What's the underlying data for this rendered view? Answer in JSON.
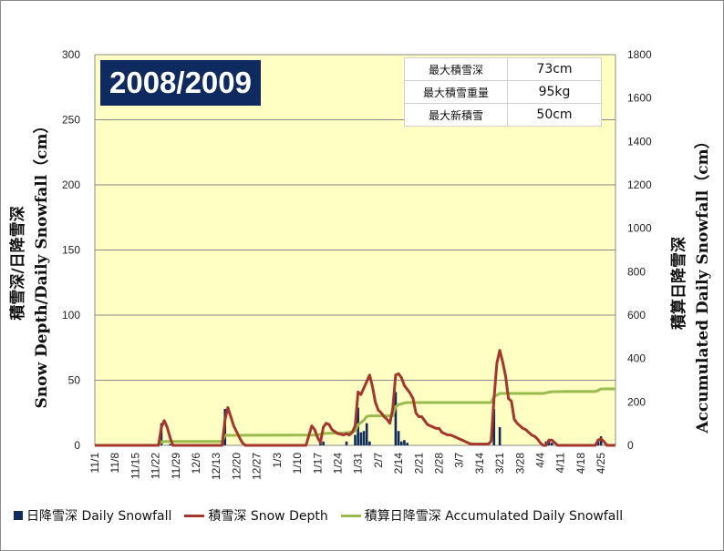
{
  "chart_data": {
    "type": "bar+line",
    "title": "2008/2009",
    "ylabel_left": "積雪深/日降雪深/Snow Depth/Daily Snowfall (cm)",
    "ylabel_left_line1": "積雪深/日降雪深",
    "ylabel_left_line2": "Snow Depth/Daily Snowfall（cm）",
    "ylabel_right_line1": "積算日降雪深",
    "ylabel_right_line2": "Accumulated Daily Snowfall（cm）",
    "ylim_left": [
      0,
      300
    ],
    "yticks_left": [
      "0",
      "50",
      "100",
      "150",
      "200",
      "250",
      "300"
    ],
    "ylim_right": [
      0,
      1800
    ],
    "yticks_right": [
      "0",
      "200",
      "400",
      "600",
      "800",
      "1000",
      "1200",
      "1400",
      "1600",
      "1800"
    ],
    "xlim_days": [
      0,
      180
    ],
    "xtick_labels": [
      "11/1",
      "11/8",
      "11/15",
      "11/22",
      "11/29",
      "12/6",
      "12/13",
      "12/20",
      "12/27",
      "1/3",
      "1/10",
      "1/17",
      "1/24",
      "1/31",
      "2/7",
      "2/14",
      "2/21",
      "2/28",
      "3/7",
      "3/14",
      "3/21",
      "3/28",
      "4/4",
      "4/11",
      "4/18",
      "4/25"
    ],
    "grid": "horizontal",
    "legend_placement": "bottom",
    "colors": {
      "plot_bg": "#ffffc4",
      "bar": "#0e2a5e",
      "snow_depth": "#a5362e",
      "accumulated": "#99bb4d"
    },
    "series": [
      {
        "name": "日降雪深 Daily Snowfall",
        "type": "bar",
        "axis": "left",
        "points": [
          [
            23,
            17
          ],
          [
            26,
            1
          ],
          [
            45,
            28
          ],
          [
            68,
            1
          ],
          [
            78,
            5
          ],
          [
            79,
            3
          ],
          [
            87,
            3
          ],
          [
            90,
            8
          ],
          [
            91,
            29
          ],
          [
            92,
            10
          ],
          [
            93,
            11
          ],
          [
            94,
            17
          ],
          [
            95,
            3
          ],
          [
            104,
            41
          ],
          [
            105,
            11
          ],
          [
            106,
            3
          ],
          [
            107,
            4
          ],
          [
            108,
            2
          ],
          [
            138,
            28
          ],
          [
            140,
            14
          ],
          [
            156,
            3
          ],
          [
            157,
            3
          ],
          [
            158,
            2
          ],
          [
            163,
            1
          ],
          [
            174,
            5
          ],
          [
            175,
            7
          ]
        ]
      },
      {
        "name": "積雪深 Snow Depth",
        "type": "line",
        "axis": "left",
        "points": [
          [
            0,
            0
          ],
          [
            22,
            0
          ],
          [
            23,
            14
          ],
          [
            24,
            19
          ],
          [
            25,
            14
          ],
          [
            26,
            6
          ],
          [
            27,
            0
          ],
          [
            44,
            0
          ],
          [
            45,
            20
          ],
          [
            46,
            29
          ],
          [
            48,
            15
          ],
          [
            50,
            6
          ],
          [
            51,
            2
          ],
          [
            52,
            0
          ],
          [
            73,
            0
          ],
          [
            75,
            15
          ],
          [
            76,
            12
          ],
          [
            77,
            6
          ],
          [
            78,
            2
          ],
          [
            79,
            14
          ],
          [
            80,
            17
          ],
          [
            81,
            16
          ],
          [
            82,
            12
          ],
          [
            84,
            9
          ],
          [
            86,
            8
          ],
          [
            87,
            9
          ],
          [
            88,
            8
          ],
          [
            89,
            10
          ],
          [
            90,
            15
          ],
          [
            91,
            41
          ],
          [
            92,
            39
          ],
          [
            93,
            44
          ],
          [
            94,
            49
          ],
          [
            95,
            54
          ],
          [
            96,
            45
          ],
          [
            97,
            33
          ],
          [
            98,
            27
          ],
          [
            99,
            25
          ],
          [
            100,
            22
          ],
          [
            101,
            20
          ],
          [
            102,
            17
          ],
          [
            103,
            28
          ],
          [
            104,
            54
          ],
          [
            105,
            55
          ],
          [
            106,
            52
          ],
          [
            107,
            46
          ],
          [
            108,
            43
          ],
          [
            109,
            40
          ],
          [
            110,
            36
          ],
          [
            111,
            25
          ],
          [
            112,
            22
          ],
          [
            113,
            22
          ],
          [
            114,
            19
          ],
          [
            115,
            16
          ],
          [
            116,
            15
          ],
          [
            117,
            14
          ],
          [
            118,
            13
          ],
          [
            119,
            13
          ],
          [
            120,
            10
          ],
          [
            121,
            9
          ],
          [
            122,
            8
          ],
          [
            123,
            8
          ],
          [
            124,
            7
          ],
          [
            125,
            6
          ],
          [
            126,
            5
          ],
          [
            127,
            4
          ],
          [
            128,
            3
          ],
          [
            129,
            2
          ],
          [
            130,
            1
          ],
          [
            131,
            1
          ],
          [
            136,
            1
          ],
          [
            137,
            3
          ],
          [
            138,
            36
          ],
          [
            139,
            63
          ],
          [
            140,
            73
          ],
          [
            141,
            64
          ],
          [
            142,
            53
          ],
          [
            143,
            36
          ],
          [
            144,
            34
          ],
          [
            145,
            20
          ],
          [
            146,
            17
          ],
          [
            147,
            15
          ],
          [
            148,
            13
          ],
          [
            149,
            12
          ],
          [
            150,
            10
          ],
          [
            151,
            8
          ],
          [
            152,
            7
          ],
          [
            153,
            5
          ],
          [
            154,
            2
          ],
          [
            155,
            0
          ],
          [
            156,
            0
          ],
          [
            157,
            4
          ],
          [
            158,
            4
          ],
          [
            159,
            2
          ],
          [
            160,
            0
          ],
          [
            173,
            0
          ],
          [
            174,
            4
          ],
          [
            175,
            5
          ],
          [
            176,
            3
          ],
          [
            177,
            0
          ],
          [
            180,
            0
          ]
        ]
      },
      {
        "name": "積算日降雪深 Accumulated Daily Snowfall",
        "type": "line",
        "axis": "right",
        "points": [
          [
            0,
            0
          ],
          [
            22,
            0
          ],
          [
            23,
            17
          ],
          [
            26,
            18
          ],
          [
            44,
            18
          ],
          [
            45,
            46
          ],
          [
            68,
            47
          ],
          [
            77,
            47
          ],
          [
            78,
            52
          ],
          [
            79,
            55
          ],
          [
            87,
            58
          ],
          [
            90,
            66
          ],
          [
            91,
            95
          ],
          [
            92,
            105
          ],
          [
            93,
            116
          ],
          [
            94,
            133
          ],
          [
            95,
            136
          ],
          [
            103,
            136
          ],
          [
            104,
            177
          ],
          [
            105,
            188
          ],
          [
            106,
            191
          ],
          [
            107,
            195
          ],
          [
            108,
            197
          ],
          [
            137,
            197
          ],
          [
            138,
            225
          ],
          [
            140,
            239
          ],
          [
            155,
            239
          ],
          [
            156,
            242
          ],
          [
            157,
            245
          ],
          [
            158,
            247
          ],
          [
            163,
            248
          ],
          [
            173,
            248
          ],
          [
            174,
            253
          ],
          [
            175,
            260
          ],
          [
            180,
            260
          ]
        ]
      }
    ],
    "stats": [
      {
        "label": "最大積雪深",
        "value": "73cm"
      },
      {
        "label": "最大積雪重量",
        "value": "95kg"
      },
      {
        "label": "最大新積雪",
        "value": "50cm"
      }
    ]
  }
}
